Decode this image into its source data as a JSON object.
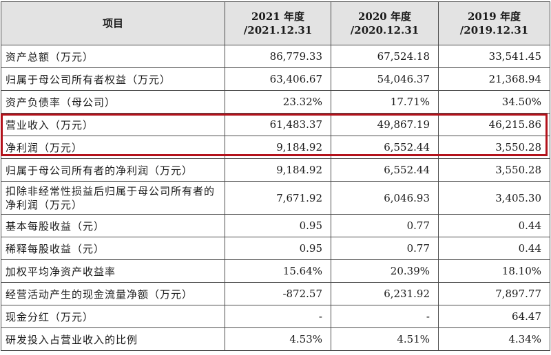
{
  "table": {
    "headers": [
      {
        "line1": "项目",
        "line2": ""
      },
      {
        "line1": "2021 年度",
        "line2": "/2021.12.31"
      },
      {
        "line1": "2020 年度",
        "line2": "/2020.12.31"
      },
      {
        "line1": "2019 年度",
        "line2": "/2019.12.31"
      }
    ],
    "rows": [
      {
        "item": "资产总额（万元）",
        "v2021": "86,779.33",
        "v2020": "67,524.18",
        "v2019": "33,541.45"
      },
      {
        "item": "归属于母公司所有者权益（万元）",
        "v2021": "63,406.67",
        "v2020": "54,046.37",
        "v2019": "21,368.94"
      },
      {
        "item": "资产负债率（母公司）",
        "v2021": "23.32%",
        "v2020": "17.71%",
        "v2019": "34.50%"
      },
      {
        "item": "营业收入（万元）",
        "v2021": "61,483.37",
        "v2020": "49,867.19",
        "v2019": "46,215.86"
      },
      {
        "item": "净利润（万元）",
        "v2021": "9,184.92",
        "v2020": "6,552.44",
        "v2019": "3,550.28"
      },
      {
        "item": "归属于母公司所有者的净利润（万元）",
        "v2021": "9,184.92",
        "v2020": "6,552.44",
        "v2019": "3,550.28"
      },
      {
        "item": "扣除非经常性损益后归属于母公司所有者的净利润（万元）",
        "v2021": "7,671.92",
        "v2020": "6,046.93",
        "v2019": "3,405.30"
      },
      {
        "item": "基本每股收益（元）",
        "v2021": "0.95",
        "v2020": "0.77",
        "v2019": "0.44"
      },
      {
        "item": "稀释每股收益（元）",
        "v2021": "0.95",
        "v2020": "0.77",
        "v2019": "0.44"
      },
      {
        "item": "加权平均净资产收益率",
        "v2021": "15.64%",
        "v2020": "20.39%",
        "v2019": "18.10%"
      },
      {
        "item": "经营活动产生的现金流量净额（万元）",
        "v2021": "-872.57",
        "v2020": "6,231.92",
        "v2019": "7,897.77"
      },
      {
        "item": "现金分红（万元）",
        "v2021": "-",
        "v2020": "-",
        "v2019": "64.47"
      },
      {
        "item": "研发投入占营业收入的比例",
        "v2021": "4.53%",
        "v2020": "4.51%",
        "v2019": "4.34%"
      }
    ]
  },
  "highlight": {
    "color": "#b3121b"
  }
}
